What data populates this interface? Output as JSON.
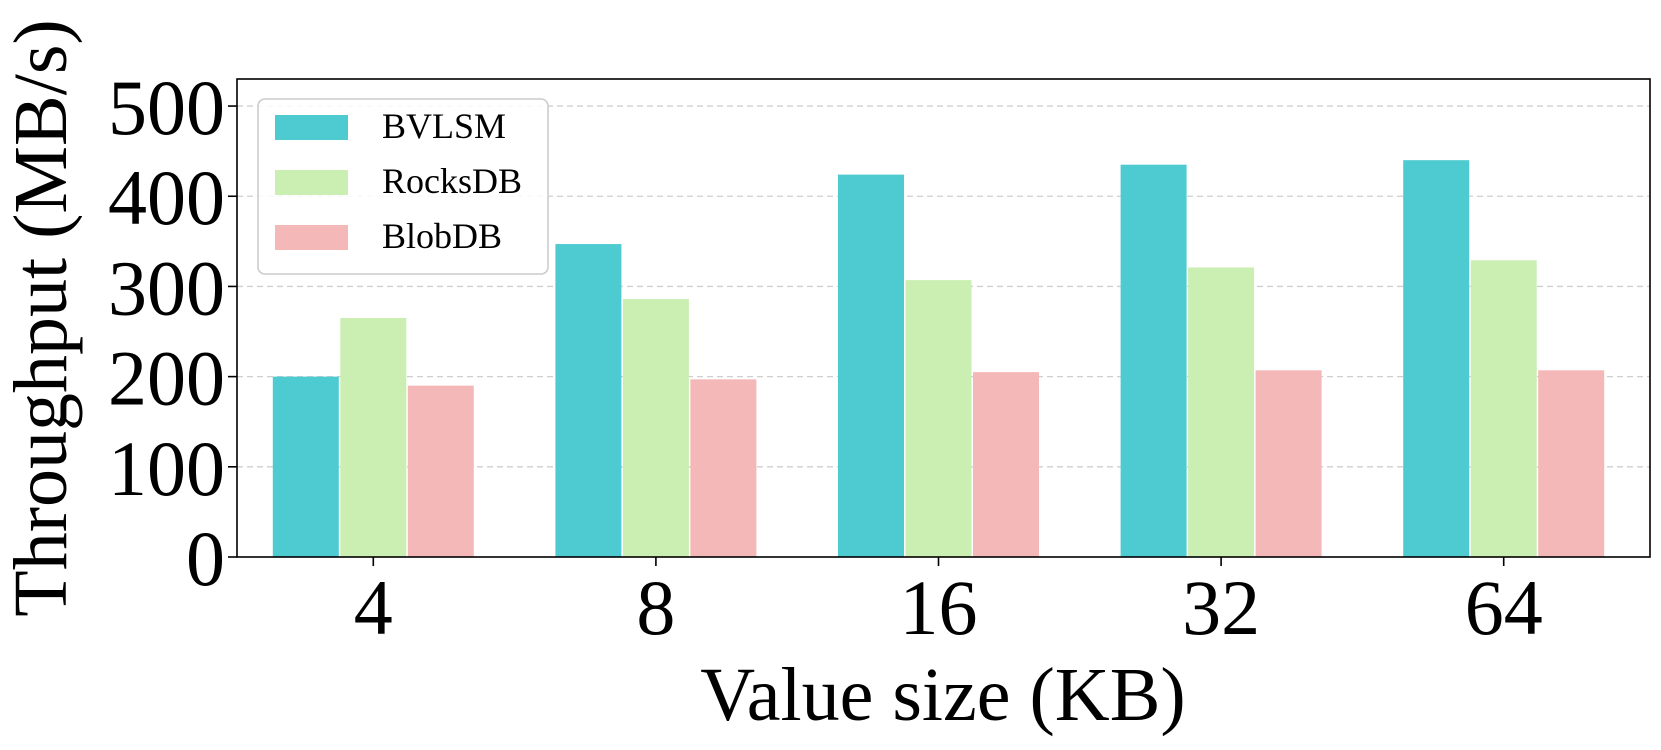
{
  "chart_data": {
    "type": "bar",
    "xlabel": "Value size (KB)",
    "ylabel": "Throughput (MB/s)",
    "ylim": [
      0,
      530
    ],
    "yticks": [
      0,
      100,
      200,
      300,
      400,
      500
    ],
    "grid": "horizontal-dashed",
    "legend_position": "top-left",
    "categories": [
      "4",
      "8",
      "16",
      "32",
      "64"
    ],
    "series": [
      {
        "name": "BVLSM",
        "color": "#4ecbd0",
        "values": [
          200,
          347,
          424,
          435,
          440
        ]
      },
      {
        "name": "RocksDB",
        "color": "#cbeeb3",
        "values": [
          265,
          286,
          307,
          321,
          329
        ]
      },
      {
        "name": "BlobDB",
        "color": "#f5b8b8",
        "values": [
          190,
          197,
          205,
          207,
          207
        ]
      }
    ]
  }
}
